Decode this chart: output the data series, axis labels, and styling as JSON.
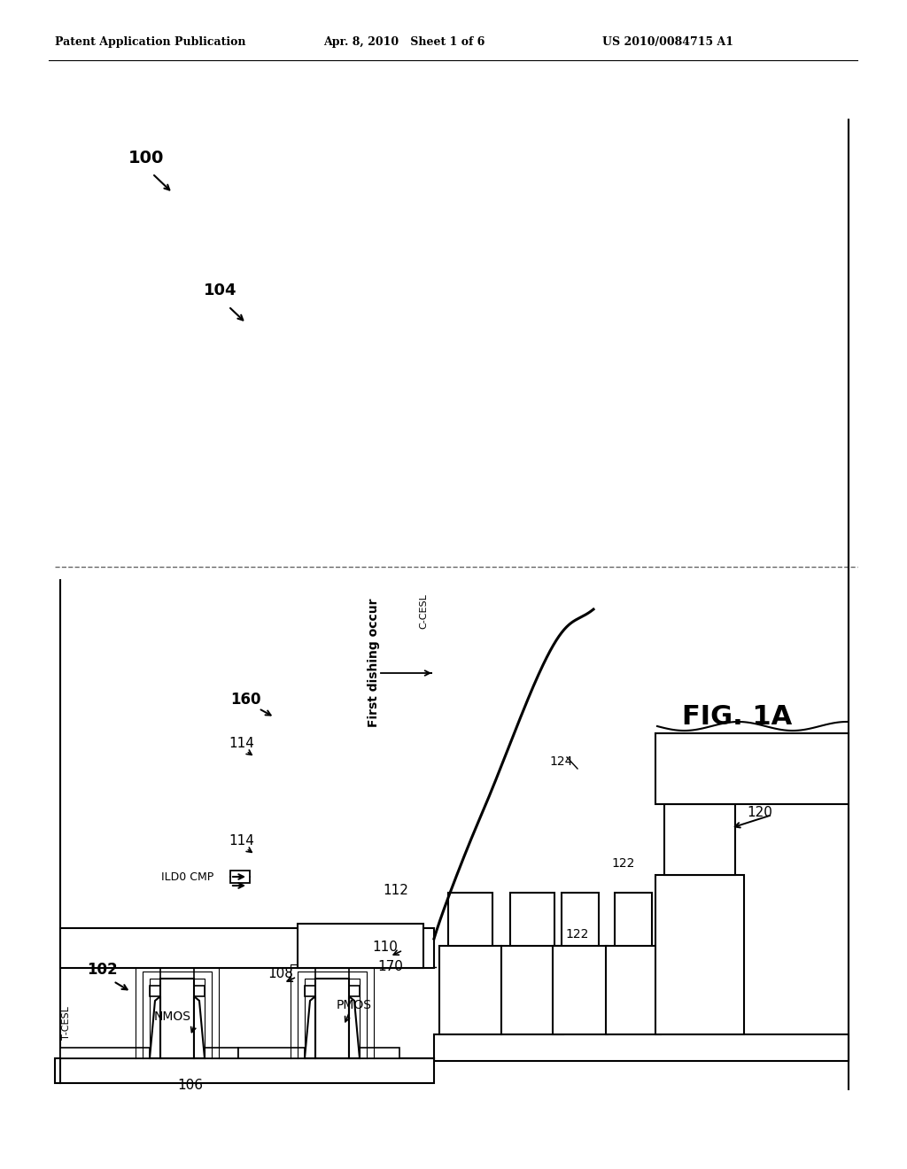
{
  "bg_color": "#ffffff",
  "title_left": "Patent Application Publication",
  "title_mid": "Apr. 8, 2010   Sheet 1 of 6",
  "title_right": "US 2010/0084715 A1",
  "fig_label": "FIG. 1A",
  "label_100": "100",
  "label_104": "104",
  "label_102": "102",
  "label_170": "170",
  "label_160": "160",
  "label_114a": "114",
  "label_114b": "114",
  "label_110": "110",
  "label_108": "108",
  "label_106": "106",
  "label_112": "112",
  "label_120": "120",
  "label_122a": "122",
  "label_122b": "122",
  "label_124": "124",
  "text_pmos": "PMOS",
  "text_nmos": "NMOS",
  "text_tcesl": "T-CESL",
  "text_ccesl": "C-CESL",
  "text_ild0cmp": "ILD0 CMP",
  "text_dishing": "First dishing occur",
  "lw": 1.5
}
